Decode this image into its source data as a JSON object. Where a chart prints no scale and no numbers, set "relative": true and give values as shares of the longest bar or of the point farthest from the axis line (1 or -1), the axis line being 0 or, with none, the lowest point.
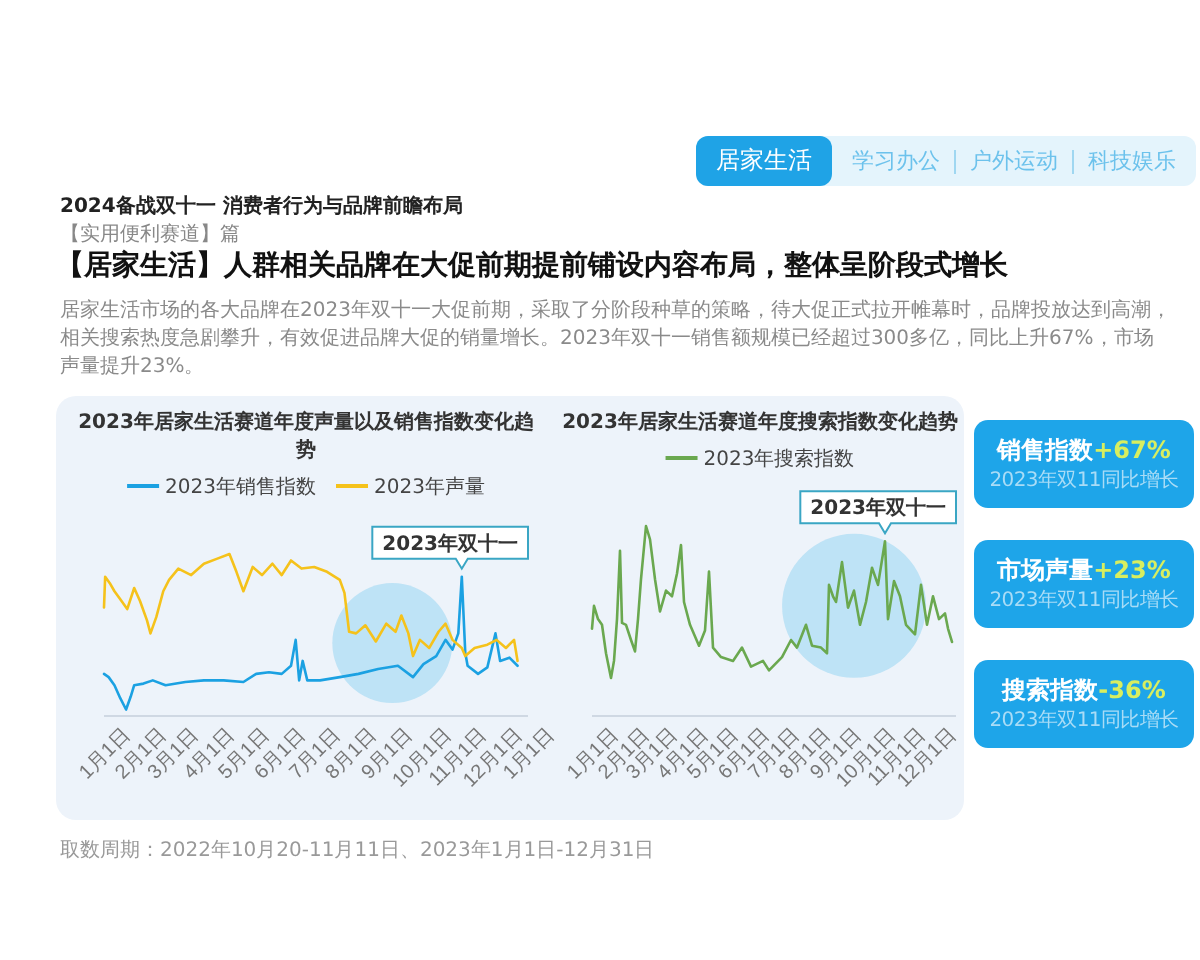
{
  "chart_data": [
    {
      "type": "other",
      "title": "【居家生活】人群相关品牌在大促前期提前铺设内容布局，整体呈阶段式增长",
      "subtitle": "居家生活市场的各大品牌在2023年双十一大促前期，采取了分阶段种草的策略，待大促正式拉开帷幕时，品牌投放达到高潮，相关搜索热度急剧攀升，有效促进品牌大促的销量增长。2023年双十一销售额规模已经超过300多亿，同比上升67%，市场声量提升23%。",
      "annotations": [
        "2024备战双十一 消费者行为与品牌前瞻布局",
        "【实用便利赛道】篇",
        "居家生活",
        "学习办公",
        "户外运动",
        "科技娱乐",
        "取数周期：2022年10月20-11月11日、2023年1月1日-12月31日"
      ]
    },
    {
      "type": "line",
      "title": "2023年居家生活赛道年度声量以及销售指数变化趋势",
      "relative": true,
      "legend": "top",
      "xlim": [
        "2023-01-01",
        "2024-01-01"
      ],
      "xticks": [
        {
          "value": "2023-01-01",
          "label": "1月1日"
        },
        {
          "value": "2023-02-01",
          "label": "2月1日"
        },
        {
          "value": "2023-03-01",
          "label": "3月1日"
        },
        {
          "value": "2023-04-01",
          "label": "4月1日"
        },
        {
          "value": "2023-05-01",
          "label": "5月1日"
        },
        {
          "value": "2023-06-01",
          "label": "6月1日"
        },
        {
          "value": "2023-07-01",
          "label": "7月1日"
        },
        {
          "value": "2023-08-01",
          "label": "8月1日"
        },
        {
          "value": "2023-09-01",
          "label": "9月1日"
        },
        {
          "value": "2023-10-01",
          "label": "10月1日"
        },
        {
          "value": "2023-11-01",
          "label": "11月1日"
        },
        {
          "value": "2023-12-01",
          "label": "12月1日"
        },
        {
          "value": "2024-01-01",
          "label": "1月1日"
        }
      ],
      "series": [
        {
          "name": "2023年销售指数",
          "color": "#1ba1e2",
          "x": [
            "2023-01-01",
            "2023-01-05",
            "2023-01-10",
            "2023-01-15",
            "2023-01-20",
            "2023-01-24",
            "2023-01-27",
            "2023-02-04",
            "2023-02-12",
            "2023-02-23",
            "2023-03-12",
            "2023-03-28",
            "2023-04-14",
            "2023-05-01",
            "2023-05-12",
            "2023-05-23",
            "2023-06-03",
            "2023-06-11",
            "2023-06-15",
            "2023-06-18",
            "2023-06-21",
            "2023-06-25",
            "2023-07-06",
            "2023-07-23",
            "2023-08-08",
            "2023-08-25",
            "2023-09-11",
            "2023-09-24",
            "2023-10-03",
            "2023-10-14",
            "2023-10-22",
            "2023-10-28",
            "2023-11-02",
            "2023-11-05",
            "2023-11-08",
            "2023-11-10",
            "2023-11-19",
            "2023-11-27",
            "2023-12-04",
            "2023-12-08",
            "2023-12-16",
            "2023-12-23"
          ],
          "values": [
            0.26,
            0.24,
            0.19,
            0.11,
            0.04,
            0.12,
            0.19,
            0.2,
            0.22,
            0.19,
            0.21,
            0.22,
            0.22,
            0.21,
            0.26,
            0.27,
            0.26,
            0.31,
            0.47,
            0.22,
            0.34,
            0.22,
            0.22,
            0.24,
            0.26,
            0.29,
            0.31,
            0.24,
            0.32,
            0.37,
            0.47,
            0.41,
            0.51,
            0.86,
            0.39,
            0.31,
            0.26,
            0.3,
            0.51,
            0.34,
            0.36,
            0.31
          ]
        },
        {
          "name": "2023年声量",
          "color": "#f5c21b",
          "x": [
            "2023-01-01",
            "2023-01-02",
            "2023-01-06",
            "2023-01-10",
            "2023-01-15",
            "2023-01-21",
            "2023-01-27",
            "2023-02-01",
            "2023-02-07",
            "2023-02-10",
            "2023-02-15",
            "2023-02-21",
            "2023-02-26",
            "2023-03-06",
            "2023-03-17",
            "2023-03-28",
            "2023-04-08",
            "2023-04-19",
            "2023-04-25",
            "2023-05-01",
            "2023-05-09",
            "2023-05-17",
            "2023-05-26",
            "2023-06-03",
            "2023-06-11",
            "2023-06-20",
            "2023-07-01",
            "2023-07-12",
            "2023-07-23",
            "2023-07-27",
            "2023-07-31",
            "2023-08-06",
            "2023-08-14",
            "2023-08-23",
            "2023-09-01",
            "2023-09-09",
            "2023-09-14",
            "2023-09-20",
            "2023-09-24",
            "2023-09-30",
            "2023-10-08",
            "2023-10-16",
            "2023-10-22",
            "2023-10-28",
            "2023-11-05",
            "2023-11-08",
            "2023-11-16",
            "2023-11-27",
            "2023-12-05",
            "2023-12-13",
            "2023-12-20",
            "2023-12-23"
          ],
          "values": [
            0.67,
            0.86,
            0.82,
            0.77,
            0.72,
            0.66,
            0.79,
            0.71,
            0.59,
            0.51,
            0.61,
            0.77,
            0.84,
            0.91,
            0.87,
            0.94,
            0.97,
            1,
            0.89,
            0.77,
            0.92,
            0.87,
            0.94,
            0.87,
            0.96,
            0.91,
            0.92,
            0.89,
            0.84,
            0.76,
            0.52,
            0.51,
            0.56,
            0.46,
            0.57,
            0.52,
            0.62,
            0.51,
            0.37,
            0.47,
            0.42,
            0.52,
            0.57,
            0.47,
            0.42,
            0.37,
            0.42,
            0.44,
            0.47,
            0.42,
            0.47,
            0.34
          ]
        }
      ],
      "annotations": [
        {
          "text": "2023年双十一",
          "x": "2023-11-05",
          "y": 0.86
        }
      ]
    },
    {
      "type": "line",
      "title": "2023年居家生活赛道年度搜索指数变化趋势",
      "relative": true,
      "legend": "top",
      "xlim": [
        "2023-01-01",
        "2023-12-31"
      ],
      "xticks": [
        {
          "value": "2023-01-01",
          "label": "1月1日"
        },
        {
          "value": "2023-02-01",
          "label": "2月1日"
        },
        {
          "value": "2023-03-01",
          "label": "3月1日"
        },
        {
          "value": "2023-04-01",
          "label": "4月1日"
        },
        {
          "value": "2023-05-01",
          "label": "5月1日"
        },
        {
          "value": "2023-06-01",
          "label": "6月1日"
        },
        {
          "value": "2023-07-01",
          "label": "7月1日"
        },
        {
          "value": "2023-08-01",
          "label": "8月1日"
        },
        {
          "value": "2023-09-01",
          "label": "9月1日"
        },
        {
          "value": "2023-10-01",
          "label": "10月1日"
        },
        {
          "value": "2023-11-01",
          "label": "11月1日"
        },
        {
          "value": "2023-12-01",
          "label": "12月1日"
        }
      ],
      "series": [
        {
          "name": "2023年搜索指数",
          "color": "#6aa84f",
          "x": [
            "2023-01-01",
            "2023-01-03",
            "2023-01-07",
            "2023-01-11",
            "2023-01-15",
            "2023-01-20",
            "2023-01-23",
            "2023-01-26",
            "2023-01-29",
            "2023-01-31",
            "2023-02-04",
            "2023-02-09",
            "2023-02-13",
            "2023-02-16",
            "2023-02-19",
            "2023-02-24",
            "2023-02-28",
            "2023-03-05",
            "2023-03-10",
            "2023-03-16",
            "2023-03-22",
            "2023-03-27",
            "2023-03-31",
            "2023-04-03",
            "2023-04-09",
            "2023-04-18",
            "2023-04-24",
            "2023-04-28",
            "2023-05-02",
            "2023-05-10",
            "2023-05-22",
            "2023-05-31",
            "2023-06-09",
            "2023-06-21",
            "2023-06-27",
            "2023-07-10",
            "2023-07-19",
            "2023-07-25",
            "2023-08-03",
            "2023-08-09",
            "2023-08-18",
            "2023-08-24",
            "2023-08-26",
            "2023-08-30",
            "2023-09-02",
            "2023-09-08",
            "2023-09-14",
            "2023-09-20",
            "2023-09-26",
            "2023-10-02",
            "2023-10-08",
            "2023-10-14",
            "2023-10-21",
            "2023-10-24",
            "2023-10-30",
            "2023-11-05",
            "2023-11-11",
            "2023-11-20",
            "2023-11-26",
            "2023-12-02",
            "2023-12-08",
            "2023-12-14",
            "2023-12-20",
            "2023-12-23",
            "2023-12-27"
          ],
          "values": [
            0.46,
            0.58,
            0.51,
            0.48,
            0.33,
            0.2,
            0.29,
            0.51,
            0.87,
            0.49,
            0.48,
            0.4,
            0.34,
            0.51,
            0.72,
            1,
            0.93,
            0.72,
            0.55,
            0.66,
            0.63,
            0.75,
            0.9,
            0.6,
            0.48,
            0.37,
            0.45,
            0.76,
            0.36,
            0.31,
            0.29,
            0.36,
            0.26,
            0.29,
            0.24,
            0.31,
            0.4,
            0.36,
            0.48,
            0.37,
            0.36,
            0.33,
            0.69,
            0.63,
            0.6,
            0.81,
            0.57,
            0.66,
            0.48,
            0.6,
            0.78,
            0.69,
            0.92,
            0.51,
            0.71,
            0.63,
            0.48,
            0.43,
            0.69,
            0.48,
            0.63,
            0.51,
            0.54,
            0.46,
            0.39
          ]
        }
      ],
      "annotations": [
        {
          "text": "2023年双十一",
          "x": "2023-10-21",
          "y": 0.92
        }
      ]
    },
    {
      "type": "other",
      "annotations": [
        "销售指数",
        "+67%",
        "2023年双11同比增长",
        "市场声量",
        "+23%",
        "2023年双11同比增长",
        "搜索指数",
        "-36%",
        "2023年双11同比增长"
      ]
    }
  ]
}
